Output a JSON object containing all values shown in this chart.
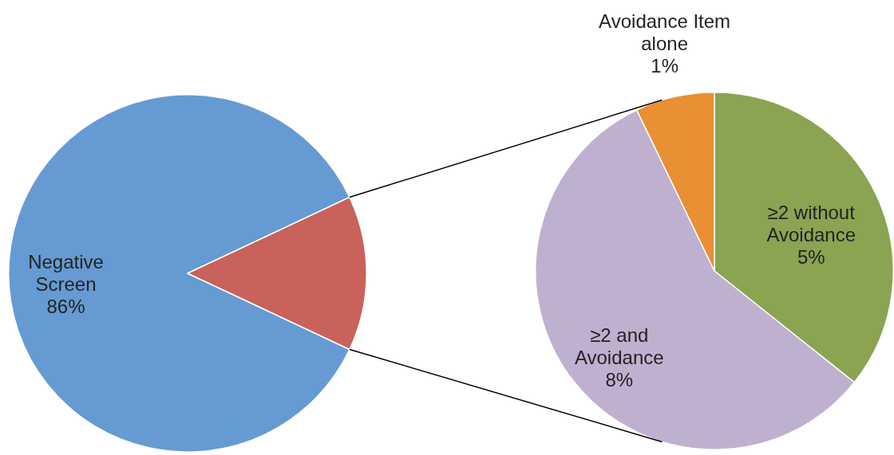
{
  "chart_data": [
    {
      "type": "pie",
      "categories": [
        "Negative Screen",
        null
      ],
      "values": [
        86,
        14
      ],
      "colors": [
        "#659bd2",
        "#c8625a"
      ],
      "value_labels": [
        "86%",
        null
      ]
    },
    {
      "type": "pie",
      "categories": [
        "≥2 without Avoidance",
        "≥2 and Avoidance",
        "Avoidance Item alone"
      ],
      "values": [
        5,
        8,
        1
      ],
      "colors": [
        "#8aa452",
        "#bfb0cf",
        "#e98f34"
      ],
      "value_labels": [
        "5%",
        "8%",
        "1%"
      ]
    }
  ]
}
